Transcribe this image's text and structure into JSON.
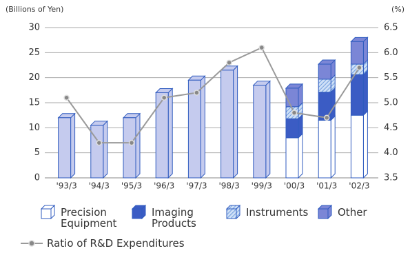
{
  "chart_data": {
    "type": "bar",
    "y_label": "(Billions of Yen)",
    "y2_label": "(%)",
    "categories": [
      "'93/3",
      "'94/3",
      "'95/3",
      "'96/3",
      "'97/3",
      "'98/3",
      "'99/3",
      "'00/3",
      "'01/3",
      "'02/3"
    ],
    "values": [
      12,
      10.5,
      12,
      17,
      19.5,
      21.5,
      18.5,
      null,
      null,
      null
    ],
    "color": "#c5cbee",
    "series": [
      {
        "name": "Precision Equipment",
        "color": "#ffffff",
        "values": [
          null,
          null,
          null,
          null,
          null,
          null,
          null,
          8,
          11.5,
          12.5
        ]
      },
      {
        "name": "Imaging Products",
        "color": "#3b5cc4",
        "values": [
          null,
          null,
          null,
          null,
          null,
          null,
          null,
          3.8,
          5.6,
          8.1
        ]
      },
      {
        "name": "Instruments",
        "color": "#a9c8f0",
        "hatch": true,
        "values": [
          null,
          null,
          null,
          null,
          null,
          null,
          null,
          2.4,
          2.6,
          2.1
        ]
      },
      {
        "name": "Other",
        "color": "#7b86d6",
        "values": [
          null,
          null,
          null,
          null,
          null,
          null,
          null,
          3.7,
          3,
          4.5
        ]
      },
      {
        "name": "Ratio of R&D Expenditures",
        "type": "line",
        "axis": "y2",
        "color": "#9a9a9a",
        "values": [
          5.1,
          4.2,
          4.2,
          5.1,
          5.2,
          5.8,
          6.1,
          4.8,
          4.7,
          5.7
        ]
      }
    ],
    "ylim": [
      0,
      30
    ],
    "yticks": [
      0,
      5,
      10,
      15,
      20,
      25,
      30
    ],
    "y2lim": [
      3.5,
      6.5
    ],
    "y2ticks": [
      3.5,
      {
        "value": 4,
        "label": "4.0"
      },
      4.5,
      {
        "value": 5,
        "label": "5.0"
      },
      5.5,
      {
        "value": 6,
        "label": "6.0"
      },
      6.5
    ],
    "grid": true,
    "edge_color": "#2f5bbf"
  }
}
